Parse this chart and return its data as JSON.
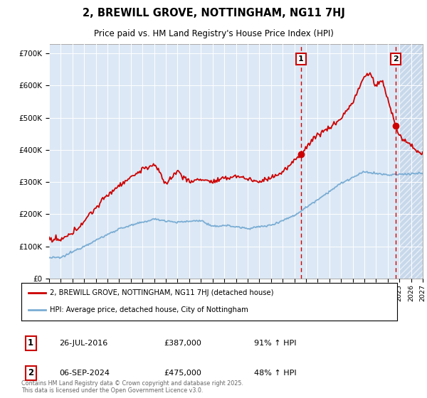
{
  "title": "2, BREWILL GROVE, NOTTINGHAM, NG11 7HJ",
  "subtitle": "Price paid vs. HM Land Registry's House Price Index (HPI)",
  "legend_line1": "2, BREWILL GROVE, NOTTINGHAM, NG11 7HJ (detached house)",
  "legend_line2": "HPI: Average price, detached house, City of Nottingham",
  "annotation1_date": "26-JUL-2016",
  "annotation1_price": "£387,000",
  "annotation1_hpi": "91% ↑ HPI",
  "annotation2_date": "06-SEP-2024",
  "annotation2_price": "£475,000",
  "annotation2_hpi": "48% ↑ HPI",
  "footer": "Contains HM Land Registry data © Crown copyright and database right 2025.\nThis data is licensed under the Open Government Licence v3.0.",
  "red_color": "#cc0000",
  "blue_color": "#7aadd4",
  "plot_bg": "#dce8f5",
  "hatch_bg": "#c8d8eb",
  "ylim": [
    0,
    730000
  ],
  "yticks": [
    0,
    100000,
    200000,
    300000,
    400000,
    500000,
    600000,
    700000
  ],
  "ytick_labels": [
    "£0",
    "£100K",
    "£200K",
    "£300K",
    "£400K",
    "£500K",
    "£600K",
    "£700K"
  ],
  "sale1_year": 2016.57,
  "sale1_price": 387000,
  "sale2_year": 2024.68,
  "sale2_price": 475000
}
